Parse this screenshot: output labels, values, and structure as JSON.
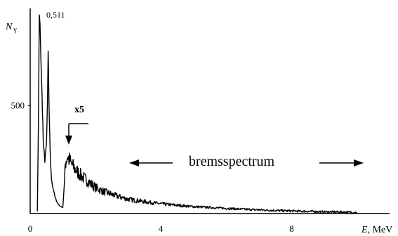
{
  "chart_data": {
    "type": "line",
    "ylabel_main": "N",
    "ylabel_sub": "γ",
    "xlabel_main": "E",
    "xlabel_unit": ", MeV",
    "xlim": [
      0,
      11
    ],
    "ylim": [
      0,
      950
    ],
    "x_ticks": [
      0,
      4,
      8
    ],
    "x_tick_labels": [
      "0",
      "4",
      "8"
    ],
    "y_ticks": [
      500
    ],
    "y_tick_labels": [
      "500"
    ],
    "annotations": {
      "peak_label": "0,511",
      "scale_label": "x5",
      "region_label": "bremsspectrum"
    },
    "series": [
      {
        "x": [
          0.22,
          0.25,
          0.28,
          0.3,
          0.33,
          0.36,
          0.4,
          0.45,
          0.5,
          0.53,
          0.55,
          0.57,
          0.6,
          0.62,
          0.65,
          0.68,
          0.72,
          0.75,
          0.8,
          0.85,
          0.9,
          0.96,
          1.0,
          1.05,
          1.08,
          1.1,
          1.15,
          1.2,
          1.3,
          1.4,
          1.5,
          1.6,
          1.8,
          2.0,
          2.2,
          2.5,
          2.8,
          3.0,
          3.5,
          4.0,
          4.5,
          5.0,
          5.5,
          6.0,
          6.5,
          7.0,
          7.5,
          8.0,
          8.5,
          9.0,
          9.5,
          10.0
        ],
        "y": [
          10,
          380,
          920,
          880,
          700,
          560,
          340,
          240,
          330,
          520,
          760,
          560,
          360,
          230,
          165,
          125,
          105,
          82,
          60,
          45,
          36,
          30,
          28,
          150,
          230,
          250,
          265,
          245,
          220,
          200,
          185,
          170,
          145,
          120,
          105,
          88,
          75,
          66,
          55,
          45,
          38,
          32,
          28,
          24,
          20,
          17,
          14,
          12,
          10,
          8,
          7,
          5
        ]
      }
    ]
  }
}
